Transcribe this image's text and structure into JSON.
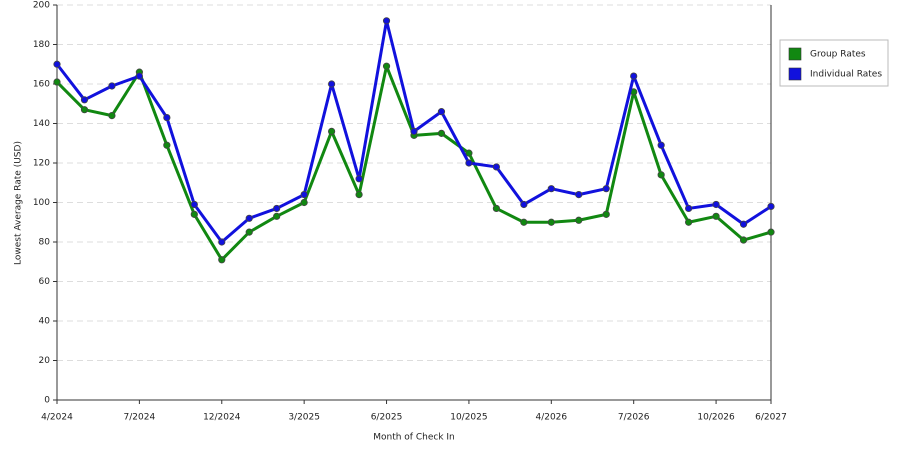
{
  "chart_data": {
    "type": "line",
    "x_label": "Month of Check In",
    "y_label": "Lowest Average Rate (USD)",
    "categories": [
      "4/2024",
      null,
      null,
      "7/2024",
      null,
      null,
      "12/2024",
      null,
      null,
      "3/2025",
      null,
      null,
      "6/2025",
      null,
      null,
      "10/2025",
      null,
      null,
      "4/2026",
      null,
      null,
      "7/2026",
      null,
      null,
      "10/2026",
      null,
      "6/2027"
    ],
    "series": [
      {
        "name": "Group Rates",
        "color": "#118811",
        "values": [
          161,
          147,
          144,
          166,
          129,
          94,
          71,
          85,
          93,
          100,
          136,
          104,
          169,
          134,
          135,
          125,
          97,
          90,
          90,
          91,
          94,
          156,
          114,
          90,
          93,
          81,
          85
        ]
      },
      {
        "name": "Individual Rates",
        "color": "#1111dd",
        "values": [
          170,
          152,
          159,
          164,
          143,
          99,
          80,
          92,
          97,
          104,
          160,
          112,
          192,
          136,
          146,
          120,
          118,
          99,
          107,
          104,
          107,
          164,
          129,
          97,
          99,
          89,
          98
        ]
      }
    ],
    "ylim": [
      0,
      200
    ],
    "yticks": [
      0,
      20,
      40,
      60,
      80,
      100,
      120,
      140,
      160,
      180,
      200
    ],
    "grid": true,
    "legend": "right"
  }
}
